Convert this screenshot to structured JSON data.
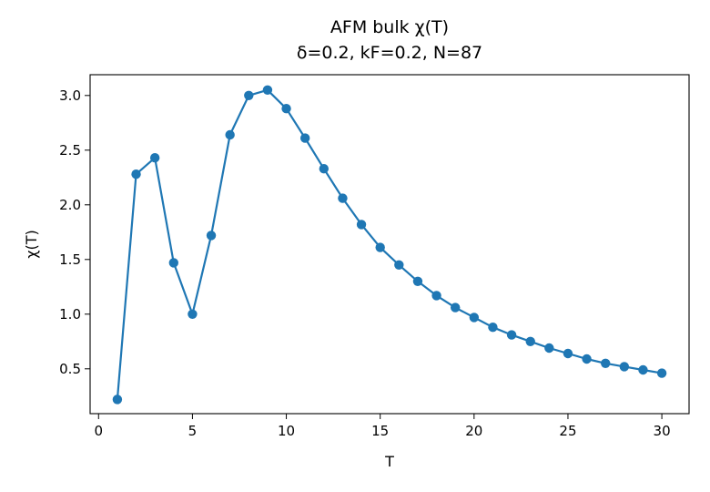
{
  "chart_data": {
    "type": "line",
    "title": "AFM bulk χ(T)",
    "subtitle": "δ=0.2, kF=0.2, N=87",
    "xlabel": "T",
    "ylabel": "χ(T)",
    "xlim": [
      -0.45,
      31.45
    ],
    "ylim": [
      0.09,
      3.19
    ],
    "xticks": [
      0,
      5,
      10,
      15,
      20,
      25,
      30
    ],
    "xtick_labels": [
      "0",
      "5",
      "10",
      "15",
      "20",
      "25",
      "30"
    ],
    "yticks": [
      0.5,
      1.0,
      1.5,
      2.0,
      2.5,
      3.0
    ],
    "ytick_labels": [
      "0.5",
      "1.0",
      "1.5",
      "2.0",
      "2.5",
      "3.0"
    ],
    "grid": false,
    "color": "#1f77b4",
    "series": [
      {
        "x": [
          1,
          2,
          3,
          4,
          5,
          6,
          7,
          8,
          9,
          10,
          11,
          12,
          13,
          14,
          15,
          16,
          17,
          18,
          19,
          20,
          21,
          22,
          23,
          24,
          25,
          26,
          27,
          28,
          29,
          30
        ],
        "y": [
          0.22,
          2.28,
          2.43,
          1.47,
          1.0,
          1.72,
          2.64,
          3.0,
          3.05,
          2.88,
          2.61,
          2.33,
          2.06,
          1.82,
          1.61,
          1.45,
          1.3,
          1.17,
          1.06,
          0.97,
          0.88,
          0.81,
          0.75,
          0.69,
          0.64,
          0.59,
          0.55,
          0.52,
          0.49,
          0.46
        ]
      }
    ]
  }
}
